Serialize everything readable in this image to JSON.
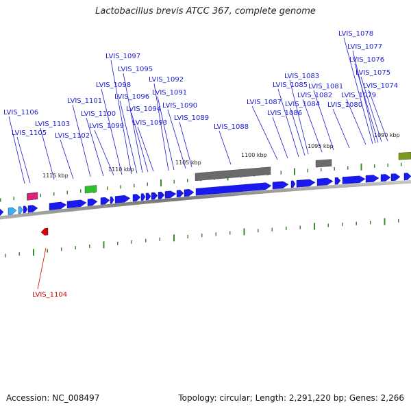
{
  "title": "Lactobacillus brevis ATCC 367, complete genome",
  "footer": {
    "accession": "Accession: NC_008497",
    "stats": "Topology: circular; Length: 2,291,220 bp; Genes: 2,266"
  },
  "colors": {
    "forward_gene": "#1a1aee",
    "reverse_gene": "#e00000",
    "label_blue": "#1a1ad0",
    "label_red": "#d00000",
    "backbone": "#8a8a8a",
    "tick": "#3a8a2a",
    "rna_pink": "#e0207a",
    "rna_green": "#30c030",
    "dark_gray_feature": "#6a6a6a",
    "olive_feature": "#7a9a20",
    "cyan_gene": "#3ab0f0"
  },
  "kbp_labels": [
    "1090 kbp",
    "1095 kbp",
    "1100 kbp",
    "1105 kbp",
    "1110 kbp",
    "1115 kbp"
  ],
  "gene_labels": [
    "LVIS_1078",
    "LVIS_1077",
    "LVIS_1076",
    "LVIS_1075",
    "LVIS_1074",
    "LVIS_1079",
    "LVIS_1080",
    "LVIS_1081",
    "LVIS_1082",
    "LVIS_1083",
    "LVIS_1084",
    "LVIS_1085",
    "LVIS_1086",
    "LVIS_1087",
    "LVIS_1088",
    "LVIS_1089",
    "LVIS_1090",
    "LVIS_1091",
    "LVIS_1092",
    "LVIS_1093",
    "LVIS_1094",
    "LVIS_1095",
    "LVIS_1096",
    "LVIS_1097",
    "LVIS_1098",
    "LVIS_1099",
    "LVIS_1100",
    "LVIS_1101",
    "LVIS_1102",
    "LVIS_1103",
    "LVIS_1105",
    "LVIS_1106",
    "LVIS_1104"
  ]
}
